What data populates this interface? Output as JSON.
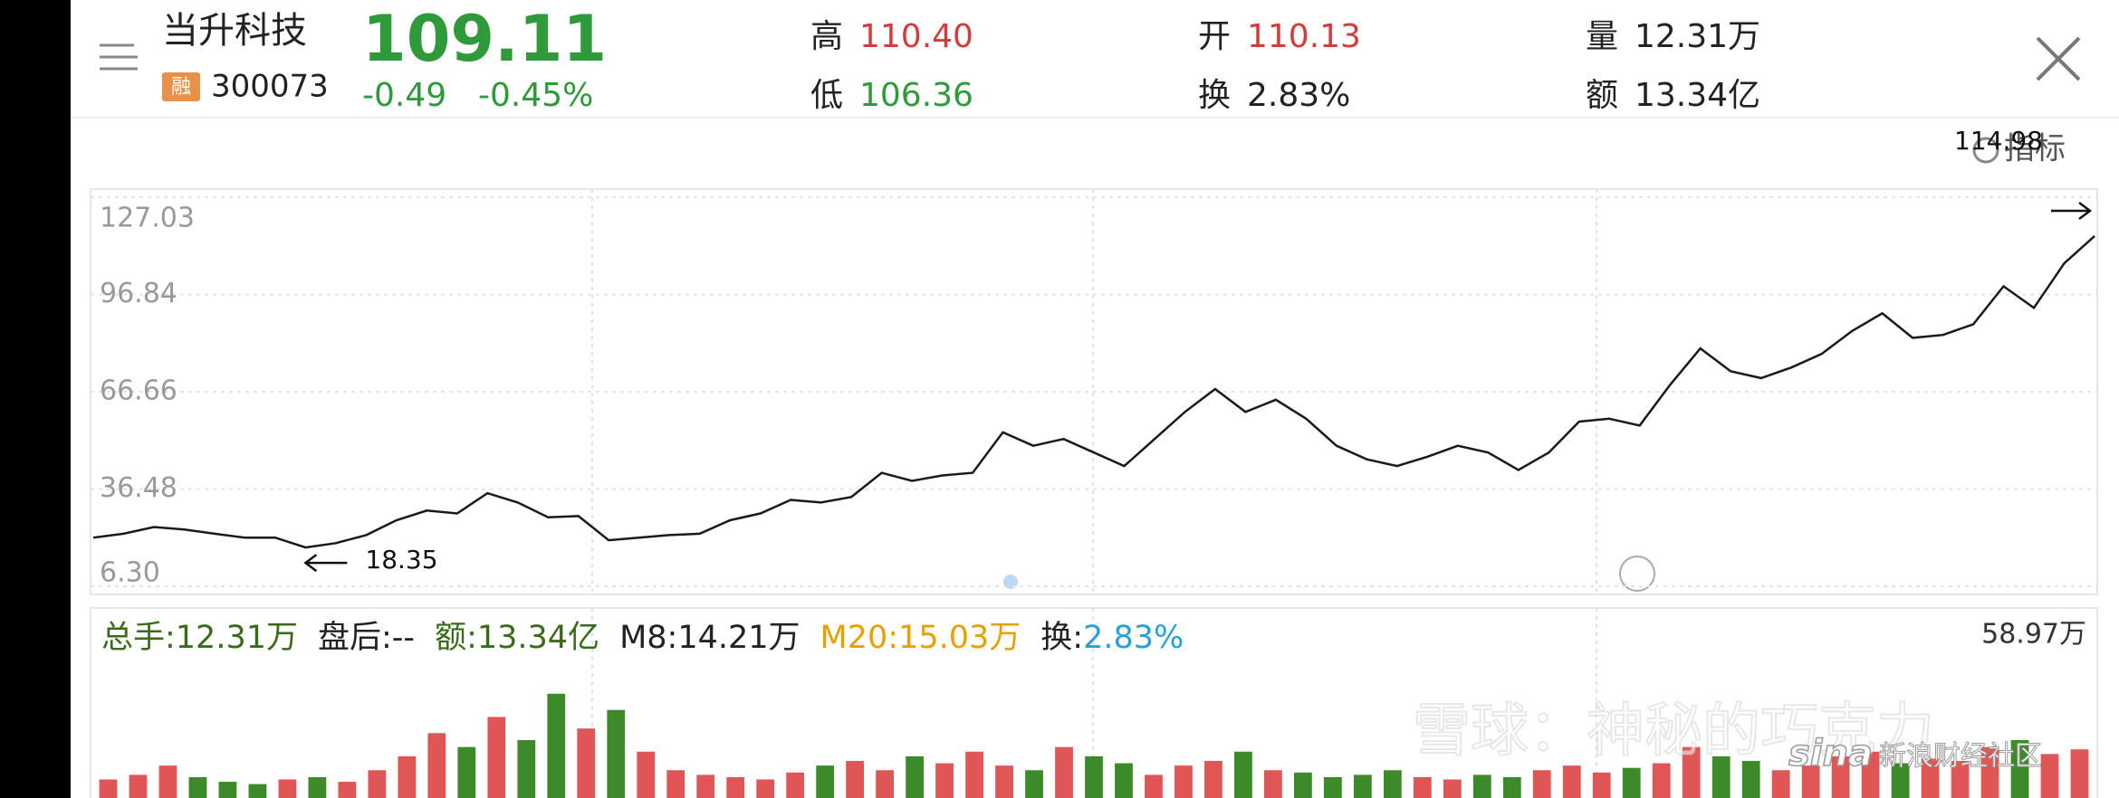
{
  "header": {
    "name": "当升科技",
    "badge": "融",
    "code": "300073",
    "price": "109.11",
    "change": "-0.49",
    "change_pct": "-0.45%",
    "stats": [
      {
        "label": "高",
        "value": "110.40",
        "color": "#d23c3c"
      },
      {
        "label": "低",
        "value": "106.36",
        "color": "#2e9a3a"
      },
      {
        "label": "开",
        "value": "110.13",
        "color": "#d23c3c"
      },
      {
        "label": "换",
        "value": "2.83%",
        "color": "#222222"
      },
      {
        "label": "量",
        "value": "12.31万",
        "color": "#222222"
      },
      {
        "label": "额",
        "value": "13.34亿",
        "color": "#222222"
      }
    ]
  },
  "toolbar": {
    "indicator": "指标"
  },
  "chart_data": [
    {
      "type": "line",
      "color": "#1a1a1a",
      "values": [
        21.4,
        22.6,
        24.7,
        23.9,
        22.6,
        21.4,
        21.4,
        18.35,
        19.7,
        22.2,
        26.8,
        29.8,
        28.9,
        35.2,
        32.3,
        27.7,
        28.1,
        20.6,
        21.4,
        22.2,
        22.6,
        26.8,
        28.9,
        33.1,
        32.3,
        34.0,
        41.5,
        39.0,
        40.7,
        41.5,
        54.1,
        49.9,
        52.0,
        47.8,
        43.6,
        52.0,
        60.4,
        67.5,
        60.4,
        64.2,
        58.3,
        49.9,
        45.7,
        43.6,
        46.5,
        49.9,
        47.8,
        42.4,
        47.8,
        57.4,
        58.3,
        56.2,
        68.8,
        80.1,
        73.0,
        70.9,
        74.2,
        78.4,
        85.5,
        91.0,
        83.4,
        84.3,
        87.6,
        99.4,
        92.7,
        106.5,
        114.98
      ],
      "ylim": [
        6.3,
        127.03
      ],
      "yticks": [
        {
          "value": 6.3,
          "label": "6.30"
        },
        36.48,
        66.66,
        96.84,
        127.03
      ],
      "grid": true,
      "annotations": {
        "max": 114.98,
        "min": 18.35
      }
    },
    {
      "type": "bar",
      "up_color": "#e05555",
      "down_color": "#3d8a2a",
      "stats": [
        {
          "text": "总手:12.31万",
          "color": "#3a6b1a"
        },
        {
          "text": "盘后:--",
          "color": "#222222"
        },
        {
          "text": "额:13.34亿",
          "color": "#3a6b1a"
        },
        {
          "text": "M8:14.21万",
          "color": "#222222"
        },
        {
          "text": "M20:15.03万",
          "color": "#e6a100"
        },
        {
          "text": "换:",
          "color": "#222222"
        },
        {
          "text": "2.83%",
          "color": "#2aa0d8"
        }
      ],
      "ymax": {
        "value": 58.97,
        "label": "58.97万"
      },
      "values": [
        8,
        10,
        14,
        9,
        7,
        6,
        8,
        9,
        7,
        12,
        18,
        28,
        22,
        35,
        25,
        45,
        30,
        38,
        20,
        12,
        10,
        9,
        8,
        11,
        14,
        16,
        12,
        18,
        15,
        20,
        14,
        12,
        22,
        18,
        15,
        10,
        14,
        16,
        20,
        12,
        11,
        9,
        10,
        12,
        9,
        8,
        10,
        9,
        12,
        14,
        11,
        13,
        15,
        22,
        18,
        16,
        12,
        14,
        18,
        20,
        15,
        17,
        16,
        22,
        25,
        19,
        21
      ]
    }
  ],
  "watermark": {
    "xueqiu": "雪球：神秘的巧克力",
    "sina": "sina",
    "sina_text": "新浪财经社区"
  }
}
